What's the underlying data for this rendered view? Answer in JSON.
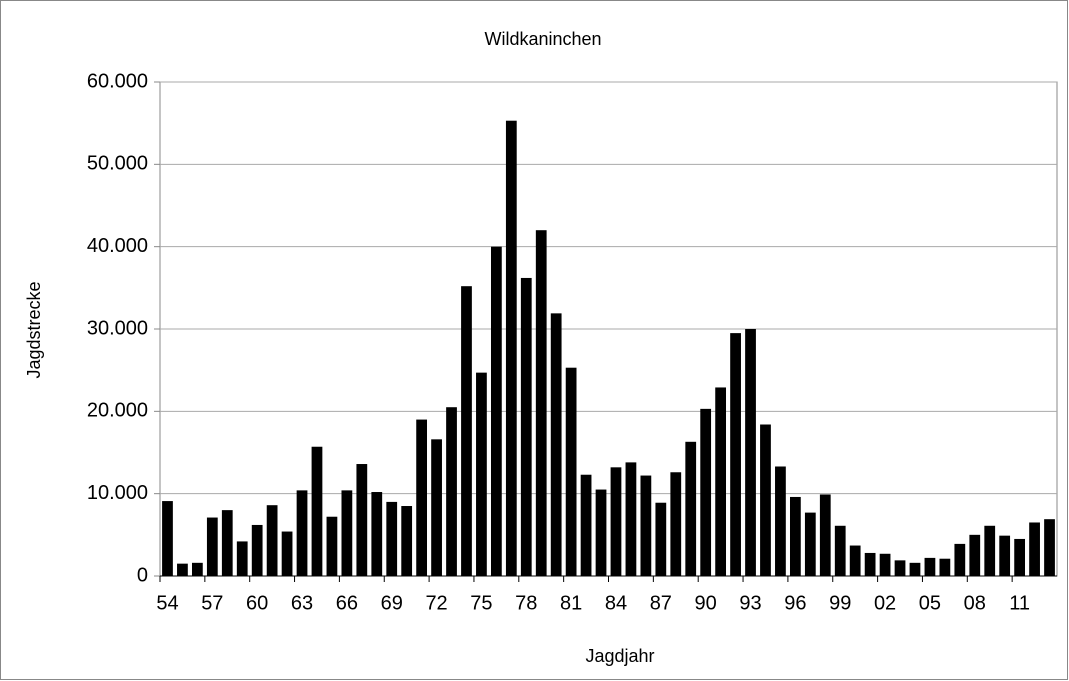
{
  "chart_data": {
    "type": "bar",
    "title": "Wildkaninchen",
    "x_label": "Jagdjahr",
    "y_label": "Jagdstrecke",
    "categories": [
      "54",
      null,
      null,
      "57",
      null,
      null,
      "60",
      null,
      null,
      "63",
      null,
      null,
      "66",
      null,
      null,
      "69",
      null,
      null,
      "72",
      null,
      null,
      "75",
      null,
      null,
      "78",
      null,
      null,
      "81",
      null,
      null,
      "84",
      null,
      null,
      "87",
      null,
      null,
      "90",
      null,
      null,
      "93",
      null,
      null,
      "96",
      null,
      null,
      "99",
      null,
      null,
      "02",
      null,
      null,
      "05",
      null,
      null,
      "08",
      null,
      null,
      "11",
      null,
      null
    ],
    "values": [
      9100,
      1500,
      1600,
      7100,
      8000,
      4200,
      6200,
      8600,
      5400,
      10400,
      15700,
      7200,
      10400,
      13600,
      10200,
      9000,
      8500,
      19000,
      16600,
      20500,
      35200,
      24700,
      40000,
      55300,
      36200,
      42000,
      31900,
      25300,
      12300,
      10500,
      13200,
      13800,
      12200,
      8900,
      12600,
      16300,
      20300,
      22900,
      29500,
      30000,
      18400,
      13300,
      9600,
      7700,
      9900,
      6100,
      3700,
      2800,
      2700,
      1900,
      1600,
      2200,
      2100,
      3900,
      5000,
      6100,
      4900,
      4500,
      6500,
      6900
    ],
    "color": "#000000",
    "ylim": [
      0,
      60000
    ],
    "yticks": [
      0,
      {
        "value": 10000,
        "label": "10.000"
      },
      {
        "value": 20000,
        "label": "20.000"
      },
      {
        "value": 30000,
        "label": "30.000"
      },
      {
        "value": 40000,
        "label": "40.000"
      },
      {
        "value": 50000,
        "label": "50.000"
      },
      {
        "value": 60000,
        "label": "60.000"
      }
    ],
    "grid": true
  }
}
